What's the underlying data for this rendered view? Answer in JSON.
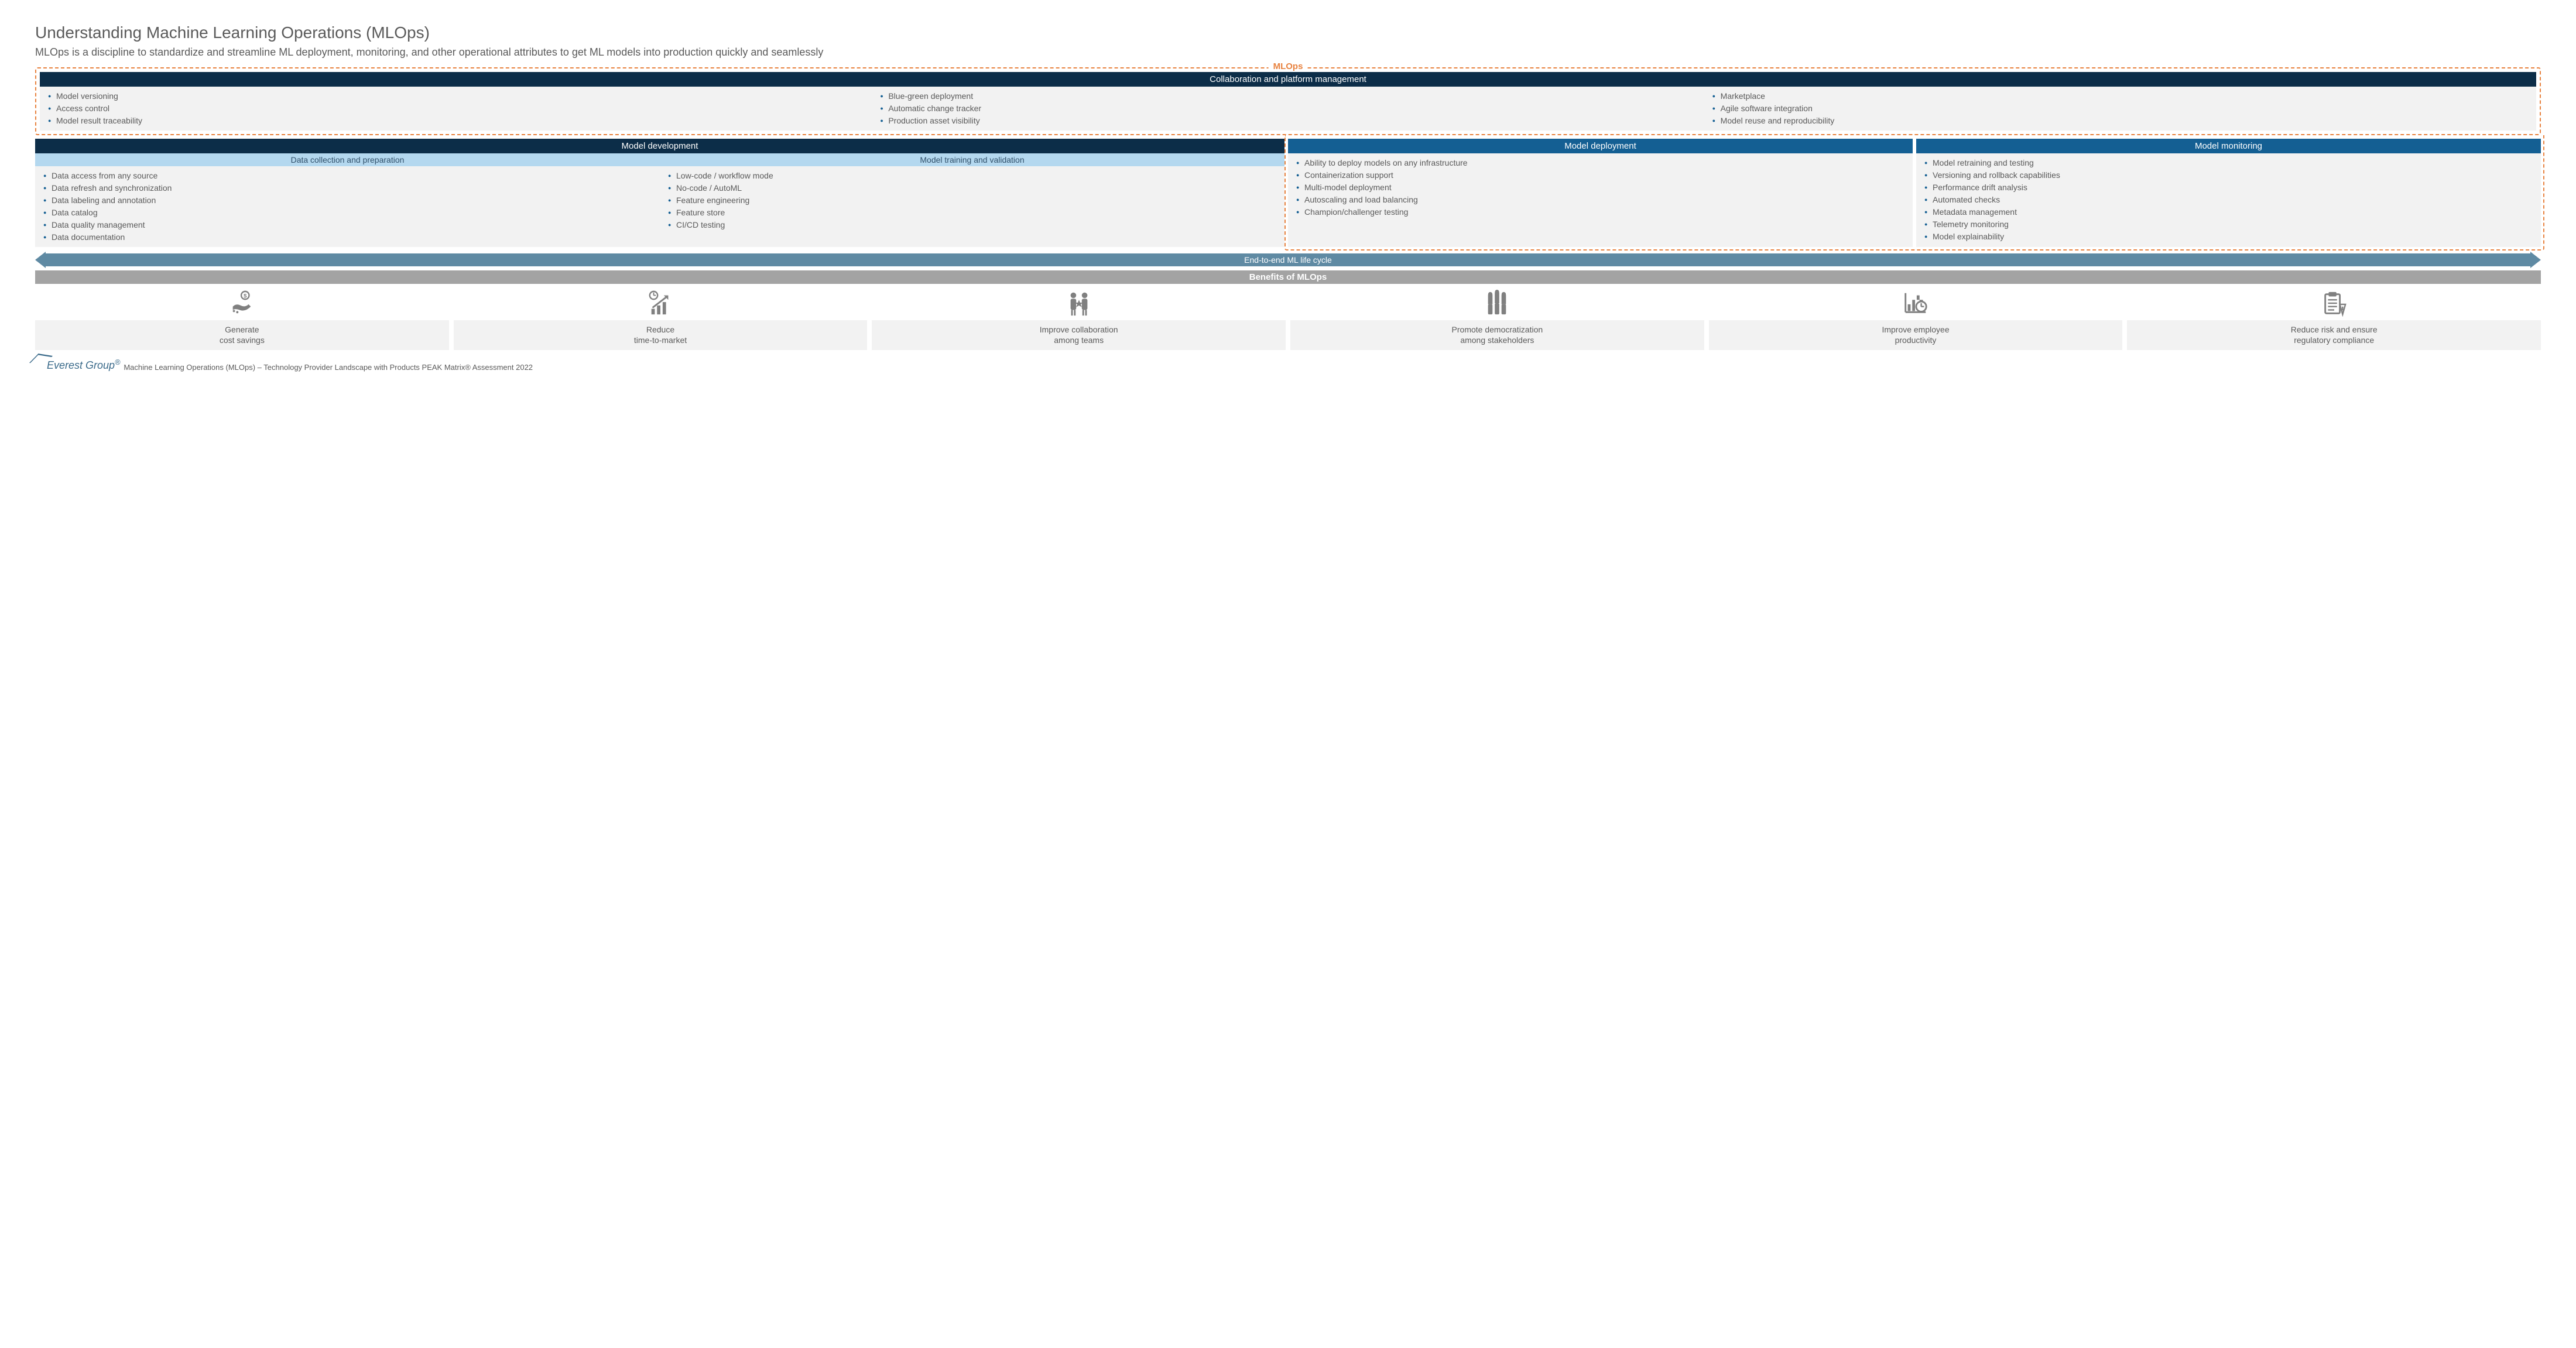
{
  "colors": {
    "dash_border": "#e8823f",
    "mlops_label": "#e8823f",
    "header_dark": "#0c2d48",
    "header_blue": "#145f93",
    "subheader_light": "#b4d8ef",
    "panel_bg": "#f2f2f2",
    "bullet_color": "#145f93",
    "lifecycle": "#5f8aa3",
    "benefits_bar": "#a3a3a3",
    "icon_gray": "#808080",
    "benefit_bg": "#f2f2f2"
  },
  "title": "Understanding Machine Learning Operations (MLOps)",
  "subtitle": "MLOps is a discipline to standardize and streamline ML deployment, monitoring, and other operational attributes to get ML models into production quickly and seamlessly",
  "mlops_label": "MLOps",
  "collab": {
    "header": "Collaboration and platform management",
    "col1": [
      "Model versioning",
      "Access control",
      "Model result traceability"
    ],
    "col2": [
      "Blue-green deployment",
      "Automatic change tracker",
      "Production asset visibility"
    ],
    "col3": [
      "Marketplace",
      "Agile software integration",
      "Model reuse and reproducibility"
    ]
  },
  "dev": {
    "header": "Model development",
    "sub1": {
      "header": "Data collection and preparation",
      "items": [
        "Data access from any source",
        "Data refresh and synchronization",
        "Data labeling and annotation",
        "Data catalog",
        "Data quality management",
        "Data documentation"
      ]
    },
    "sub2": {
      "header": "Model training and validation",
      "items": [
        "Low-code / workflow mode",
        "No-code / AutoML",
        "Feature engineering",
        "Feature store",
        "CI/CD testing"
      ]
    }
  },
  "dep": {
    "header": "Model deployment",
    "items": [
      "Ability to deploy models on any infrastructure",
      "Containerization support",
      "Multi-model deployment",
      "Autoscaling and load balancing",
      "Champion/challenger testing"
    ]
  },
  "mon": {
    "header": "Model monitoring",
    "items": [
      "Model retraining and testing",
      "Versioning and rollback capabilities",
      "Performance drift analysis",
      "Automated checks",
      "Metadata management",
      "Telemetry monitoring",
      "Model explainability"
    ]
  },
  "lifecycle_label": "End-to-end ML life cycle",
  "benefits_header": "Benefits of MLOps",
  "benefits": [
    {
      "icon": "cost-savings-icon",
      "label": "Generate\ncost savings"
    },
    {
      "icon": "time-market-icon",
      "label": "Reduce\ntime-to-market"
    },
    {
      "icon": "collaboration-icon",
      "label": "Improve collaboration\namong teams"
    },
    {
      "icon": "democratization-icon",
      "label": "Promote democratization\namong stakeholders"
    },
    {
      "icon": "productivity-icon",
      "label": "Improve employee\nproductivity"
    },
    {
      "icon": "compliance-icon",
      "label": "Reduce risk and ensure\nregulatory compliance"
    }
  ],
  "footer": {
    "logo": "Everest Group",
    "text": "Machine Learning Operations (MLOps) – Technology Provider Landscape with Products PEAK Matrix® Assessment 2022"
  }
}
